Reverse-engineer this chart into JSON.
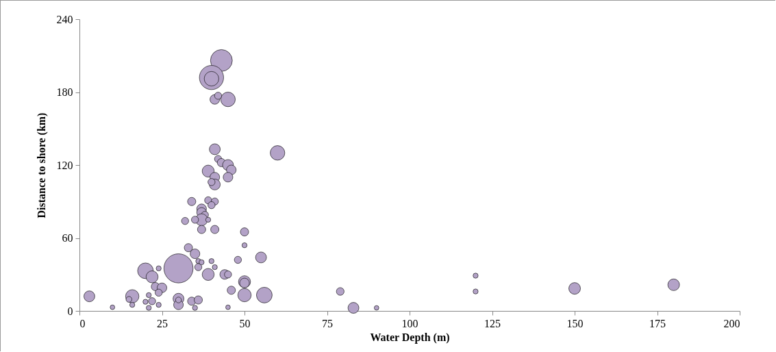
{
  "chart_data": {
    "type": "bubble",
    "xlabel": "Water Depth (m)",
    "ylabel": "Distance to shore (km)",
    "xlim": [
      0,
      200
    ],
    "xticks": [
      0,
      25,
      50,
      75,
      100,
      125,
      150,
      175,
      200
    ],
    "ylim": [
      0,
      240
    ],
    "yticks": [
      0,
      60,
      120,
      180,
      240
    ],
    "grid": false,
    "series": [
      {
        "color": "#b3a2c7",
        "x": [
          43,
          40,
          40,
          45,
          41,
          42,
          30,
          3,
          10,
          16,
          15,
          16,
          20,
          22,
          23,
          25,
          22,
          21,
          20,
          21,
          24,
          24,
          24,
          33,
          35,
          36,
          36,
          37,
          40,
          41,
          39,
          44,
          45,
          48,
          50,
          50,
          55,
          50,
          50,
          46,
          50,
          56,
          45,
          30,
          30,
          30,
          34,
          36,
          35,
          41,
          42,
          43,
          45,
          46,
          39,
          41,
          45,
          41,
          40,
          60,
          34,
          39,
          41,
          40,
          37,
          37,
          38,
          37,
          35,
          32,
          39,
          37,
          41,
          79,
          83,
          90,
          120,
          120,
          150,
          180
        ],
        "values": [
          206,
          192,
          191,
          174,
          174,
          177,
          35,
          12,
          3,
          12,
          9.5,
          5,
          33,
          28,
          20,
          19,
          8,
          13,
          7.5,
          2.5,
          5,
          15,
          35,
          52,
          47,
          41,
          36,
          40,
          41,
          36,
          30,
          30,
          30,
          42,
          65,
          54,
          44,
          24,
          23,
          17,
          13,
          13,
          3,
          10,
          5,
          9,
          8,
          9,
          2.5,
          133,
          125,
          122,
          120,
          116,
          115,
          110,
          110,
          104,
          106,
          130,
          90,
          91,
          90,
          87,
          84,
          81,
          79,
          75,
          75,
          74,
          75,
          67,
          67,
          16,
          2.5,
          2.5,
          29,
          16,
          18.5,
          21.5
        ],
        "sizes": [
          0.56,
          0.69,
          0.25,
          0.25,
          0.11,
          0.06,
          1,
          0.14,
          0.025,
          0.21,
          0.04,
          0.03,
          0.29,
          0.17,
          0.08,
          0.11,
          0.06,
          0.03,
          0.03,
          0.03,
          0.03,
          0.06,
          0.03,
          0.08,
          0.11,
          0.03,
          0.06,
          0.03,
          0.03,
          0.03,
          0.17,
          0.11,
          0.06,
          0.06,
          0.08,
          0.03,
          0.14,
          0.17,
          0.11,
          0.08,
          0.21,
          0.29,
          0.025,
          0.14,
          0.11,
          0.04,
          0.08,
          0.08,
          0.03,
          0.14,
          0.06,
          0.08,
          0.14,
          0.11,
          0.17,
          0.11,
          0.11,
          0.14,
          0.06,
          0.25,
          0.08,
          0.06,
          0.06,
          0.06,
          0.11,
          0.11,
          0.06,
          0.17,
          0.06,
          0.06,
          0.03,
          0.08,
          0.08,
          0.07,
          0.14,
          0.025,
          0.03,
          0.03,
          0.16,
          0.16
        ]
      }
    ]
  }
}
